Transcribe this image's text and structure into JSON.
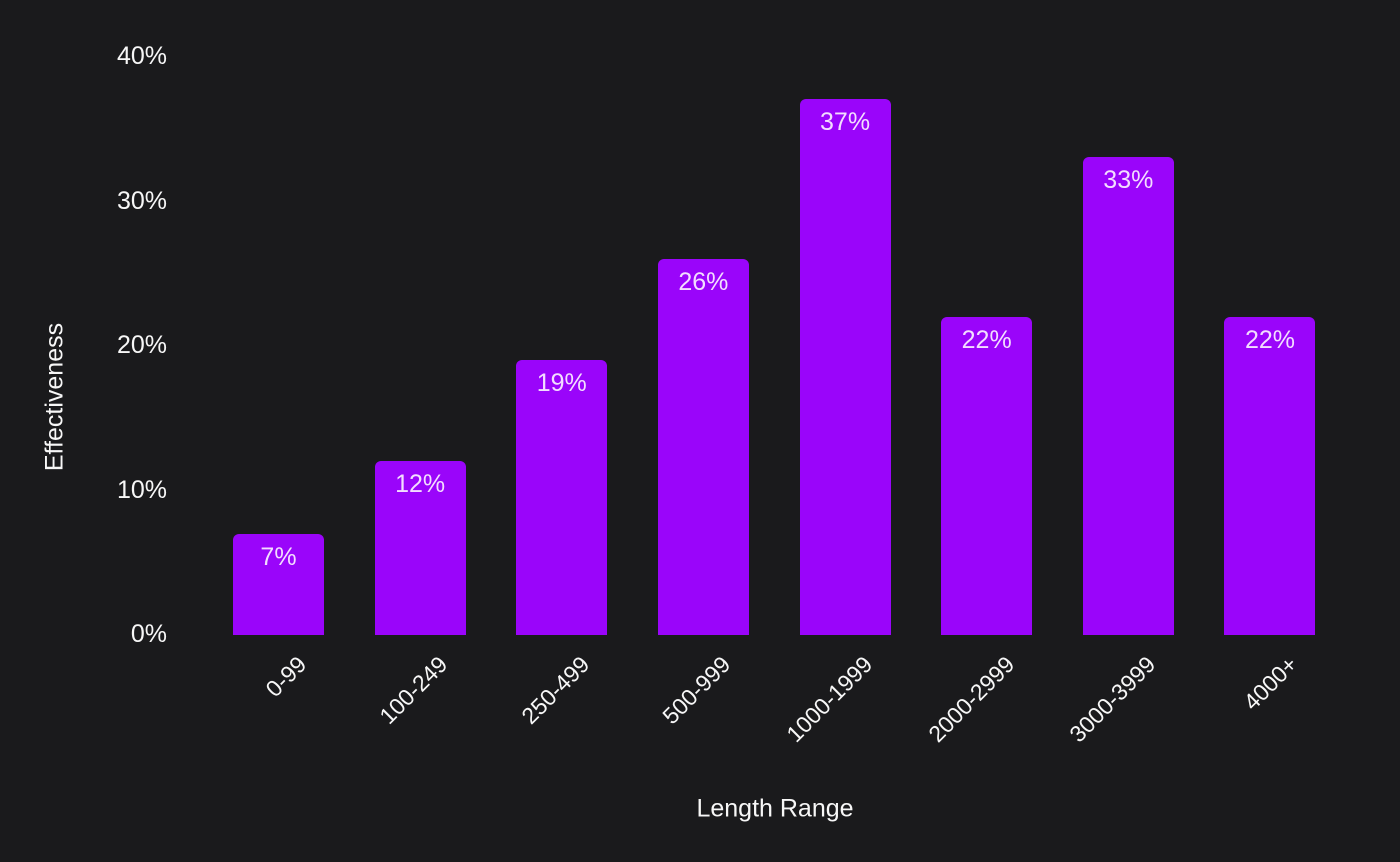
{
  "chart_data": {
    "type": "bar",
    "title": "",
    "categories": [
      "0-99",
      "100-249",
      "250-499",
      "500-999",
      "1000-1999",
      "2000-2999",
      "3000-3999",
      "4000+"
    ],
    "values": [
      7,
      12,
      19,
      26,
      37,
      22,
      33,
      22
    ],
    "value_labels": [
      "7%",
      "12%",
      "19%",
      "26%",
      "37%",
      "22%",
      "33%",
      "22%"
    ],
    "xlabel": "Length Range",
    "ylabel": "Effectiveness",
    "yticks": [
      {
        "label": "0%",
        "value": 0
      },
      {
        "label": "10%",
        "value": 10
      },
      {
        "label": "20%",
        "value": 20
      },
      {
        "label": "30%",
        "value": 30
      },
      {
        "label": "40%",
        "value": 40
      }
    ],
    "ylim": [
      0,
      40
    ],
    "grid": false,
    "legend": false,
    "colors": {
      "background": "#1a1a1c",
      "bar": "#9a05fa",
      "bar_value_text": "#f3ddff",
      "axis_text": "#f7f7f7"
    }
  }
}
